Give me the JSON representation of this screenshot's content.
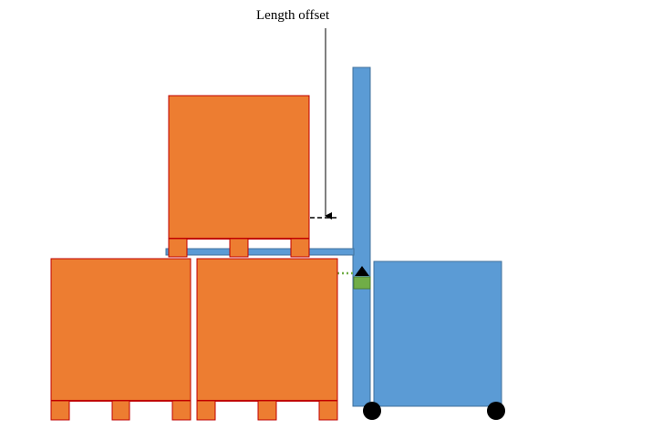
{
  "annotation": {
    "label": "Length offset"
  },
  "colors": {
    "cargo": "#ED7D31",
    "cargo_border": "#C00000",
    "forklift": "#5B9BD5",
    "forklift_border": "#41719C",
    "sensor": "#70AD47",
    "wheel": "#000000",
    "guide_line": "#70AD47"
  },
  "scene": {
    "bottom_row_pallets": 2,
    "top_row_pallets": 1,
    "forklift_wheels": 2
  }
}
